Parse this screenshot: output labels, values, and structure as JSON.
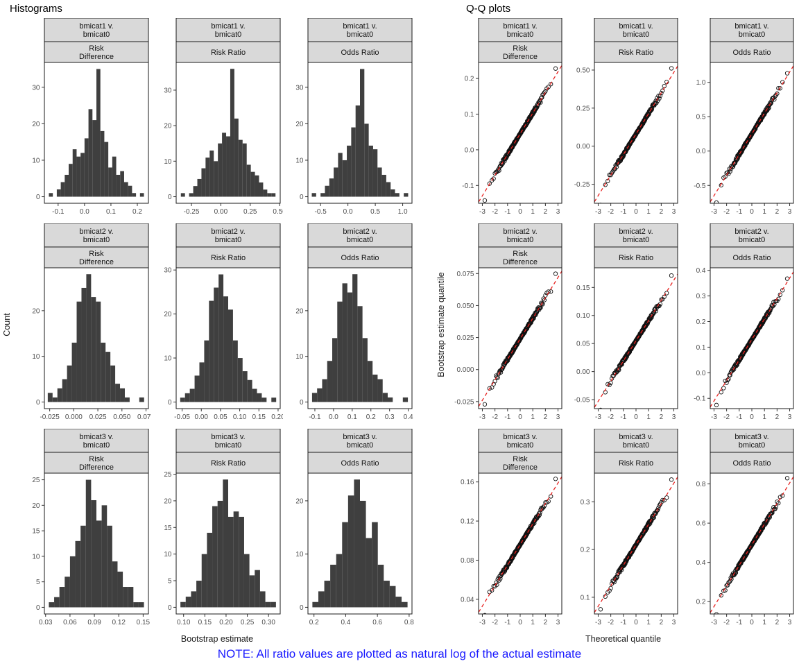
{
  "titles": {
    "left": "Histograms",
    "right": "Q-Q plots"
  },
  "axis_labels": {
    "hist_y": "Count",
    "hist_x": "Bootstrap estimate",
    "qq_y": "Bootstrap estimate quantile",
    "qq_x": "Theoretical quantile"
  },
  "note": {
    "text": "NOTE: All ratio values are plotted as natural log of the actual estimate",
    "color": "#1a1aff"
  },
  "style": {
    "bar_fill": "#3f3f3f",
    "strip_fill": "#d9d9d9",
    "panel_border": "#1a1a1a",
    "tick_color": "#333333",
    "tick_label_color": "#4d4d4d",
    "qq_line_color": "#e8201e",
    "point_stroke": "#111111"
  },
  "chart_data": [
    {
      "key": "h1",
      "type": "histogram",
      "strip1_lines": [
        "bmicat1 v.",
        "bmicat0"
      ],
      "strip2_lines": [
        "Risk",
        "Difference"
      ],
      "xmin": -0.135,
      "binwidth": 0.015,
      "counts": [
        1,
        0,
        2,
        4,
        6,
        9,
        13,
        11,
        12,
        16,
        24,
        21,
        35,
        18,
        15,
        8,
        11,
        6,
        7,
        4,
        3,
        1,
        0,
        1
      ],
      "xlim": [
        -0.152,
        0.242
      ],
      "ylim": [
        -1.8,
        36.8
      ],
      "xticks": [
        -0.1,
        0.0,
        0.1,
        0.2
      ],
      "xtick_labels": [
        "-0.1",
        "0.0",
        "0.1",
        "0.2"
      ],
      "yticks": [
        0,
        10,
        20,
        30
      ],
      "ytick_labels": [
        "0",
        "10",
        "20",
        "30"
      ]
    },
    {
      "key": "h2",
      "type": "histogram",
      "strip1_lines": [
        "bmicat1 v.",
        "bmicat0"
      ],
      "strip2_lines": [
        "Risk Ratio"
      ],
      "xmin": -0.34,
      "binwidth": 0.035,
      "counts": [
        1,
        0,
        1,
        3,
        5,
        8,
        11,
        13,
        10,
        15,
        18,
        17,
        36,
        22,
        16,
        15,
        9,
        7,
        6,
        4,
        2,
        1,
        1
      ],
      "xlim": [
        -0.38,
        0.505
      ],
      "ylim": [
        -1.85,
        37.8
      ],
      "xticks": [
        -0.25,
        0.0,
        0.25,
        0.5
      ],
      "xtick_labels": [
        "-0.25",
        "0.00",
        "0.25",
        "0.50"
      ],
      "yticks": [
        0,
        10,
        20,
        30
      ],
      "ytick_labels": [
        "0",
        "10",
        "20",
        "30"
      ]
    },
    {
      "key": "h3",
      "type": "histogram",
      "strip1_lines": [
        "bmicat1 v.",
        "bmicat0"
      ],
      "strip2_lines": [
        "Odds Ratio"
      ],
      "xmin": -0.66,
      "binwidth": 0.08,
      "counts": [
        1,
        0,
        1,
        3,
        5,
        8,
        12,
        10,
        14,
        19,
        25,
        35,
        20,
        14,
        13,
        8,
        6,
        4,
        2,
        1,
        0,
        1
      ],
      "xlim": [
        -0.73,
        1.17
      ],
      "ylim": [
        -1.8,
        36.8
      ],
      "xticks": [
        -0.5,
        0.0,
        0.5,
        1.0
      ],
      "xtick_labels": [
        "-0.5",
        "0.0",
        "0.5",
        "1.0"
      ],
      "yticks": [
        0,
        10,
        20,
        30
      ],
      "ytick_labels": [
        "0",
        "10",
        "20",
        "30"
      ]
    },
    {
      "key": "h4",
      "type": "histogram",
      "strip1_lines": [
        "bmicat2 v.",
        "bmicat0"
      ],
      "strip2_lines": [
        "Risk",
        "Difference"
      ],
      "xmin": -0.027,
      "binwidth": 0.005,
      "counts": [
        2,
        1,
        3,
        5,
        8,
        13,
        22,
        25,
        28,
        23,
        22,
        13,
        11,
        8,
        4,
        3,
        1,
        0,
        0,
        1
      ],
      "xlim": [
        -0.0305,
        0.0775
      ],
      "ylim": [
        -1.45,
        29.4
      ],
      "xticks": [
        -0.025,
        0.0,
        0.025,
        0.05,
        0.075
      ],
      "xtick_labels": [
        "-0.025",
        "0.000",
        "0.025",
        "0.050",
        "0.075"
      ],
      "yticks": [
        0,
        10,
        20
      ],
      "ytick_labels": [
        "0",
        "10",
        "20"
      ]
    },
    {
      "key": "h5",
      "type": "histogram",
      "strip1_lines": [
        "bmicat2 v.",
        "bmicat0"
      ],
      "strip2_lines": [
        "Risk Ratio"
      ],
      "xmin": -0.055,
      "binwidth": 0.0125,
      "counts": [
        1,
        2,
        3,
        6,
        9,
        14,
        23,
        26,
        29,
        24,
        21,
        14,
        10,
        7,
        5,
        3,
        2,
        1,
        0,
        1
      ],
      "xlim": [
        -0.0655,
        0.2055
      ],
      "ylim": [
        -1.5,
        30.5
      ],
      "xticks": [
        -0.05,
        0.0,
        0.05,
        0.1,
        0.15,
        0.2
      ],
      "xtick_labels": [
        "-0.05",
        "0.00",
        "0.05",
        "0.10",
        "0.15",
        "0.20"
      ],
      "yticks": [
        0,
        10,
        20,
        30
      ],
      "ytick_labels": [
        "0",
        "10",
        "20",
        "30"
      ]
    },
    {
      "key": "h6",
      "type": "histogram",
      "strip1_lines": [
        "bmicat2 v.",
        "bmicat0"
      ],
      "strip2_lines": [
        "Odds Ratio"
      ],
      "xmin": -0.115,
      "binwidth": 0.027,
      "counts": [
        2,
        3,
        5,
        9,
        14,
        22,
        26,
        24,
        28,
        21,
        14,
        9,
        6,
        5,
        2,
        1,
        0,
        0,
        1
      ],
      "xlim": [
        -0.137,
        0.42
      ],
      "ylim": [
        -1.45,
        29.4
      ],
      "xticks": [
        -0.1,
        0.0,
        0.1,
        0.2,
        0.3,
        0.4
      ],
      "xtick_labels": [
        "-0.1",
        "0.0",
        "0.1",
        "0.2",
        "0.3",
        "0.4"
      ],
      "yticks": [
        0,
        10,
        20
      ],
      "ytick_labels": [
        "0",
        "10",
        "20"
      ]
    },
    {
      "key": "h7",
      "type": "histogram",
      "strip1_lines": [
        "bmicat3 v.",
        "bmicat0"
      ],
      "strip2_lines": [
        "Risk",
        "Difference"
      ],
      "xmin": 0.034,
      "binwidth": 0.0065,
      "counts": [
        1,
        2,
        4,
        6,
        10,
        13,
        16,
        25,
        21,
        17,
        20,
        16,
        9,
        7,
        4,
        4,
        1,
        1
      ],
      "xlim": [
        0.0285,
        0.1565
      ],
      "ylim": [
        -1.3,
        26.3
      ],
      "xticks": [
        0.03,
        0.06,
        0.09,
        0.12,
        0.15
      ],
      "xtick_labels": [
        "0.03",
        "0.06",
        "0.09",
        "0.12",
        "0.15"
      ],
      "yticks": [
        0,
        5,
        10,
        15,
        20,
        25
      ],
      "ytick_labels": [
        "0",
        "5",
        "10",
        "15",
        "20",
        "25"
      ]
    },
    {
      "key": "h8",
      "type": "histogram",
      "strip1_lines": [
        "bmicat3 v.",
        "bmicat0"
      ],
      "strip2_lines": [
        "Risk Ratio"
      ],
      "xmin": 0.0925,
      "binwidth": 0.0125,
      "counts": [
        1,
        2,
        3,
        5,
        10,
        14,
        19,
        20,
        24,
        17,
        18,
        17,
        10,
        6,
        7,
        3,
        1,
        1
      ],
      "xlim": [
        0.0825,
        0.3275
      ],
      "ylim": [
        -1.25,
        25.2
      ],
      "xticks": [
        0.1,
        0.15,
        0.2,
        0.25,
        0.3
      ],
      "xtick_labels": [
        "0.10",
        "0.15",
        "0.20",
        "0.25",
        "0.30"
      ],
      "yticks": [
        0,
        5,
        10,
        15,
        20,
        25
      ],
      "ytick_labels": [
        "0",
        "5",
        "10",
        "15",
        "20",
        "25"
      ]
    },
    {
      "key": "h9",
      "type": "histogram",
      "strip1_lines": [
        "bmicat3 v.",
        "bmicat0"
      ],
      "strip2_lines": [
        "Odds Ratio"
      ],
      "xmin": 0.19,
      "binwidth": 0.0375,
      "counts": [
        1,
        3,
        5,
        8,
        10,
        16,
        21,
        24,
        20,
        13,
        16,
        8,
        5,
        4,
        2,
        1
      ],
      "xlim": [
        0.162,
        0.818
      ],
      "ylim": [
        -1.25,
        25.2
      ],
      "xticks": [
        0.2,
        0.4,
        0.6,
        0.8
      ],
      "xtick_labels": [
        "0.2",
        "0.4",
        "0.6",
        "0.8"
      ],
      "yticks": [
        0,
        10,
        20
      ],
      "ytick_labels": [
        "0",
        "10",
        "20"
      ]
    },
    {
      "key": "q1",
      "type": "qq",
      "seed": 1,
      "strip1_lines": [
        "bmicat1 v.",
        "bmicat0"
      ],
      "strip2_lines": [
        "Risk",
        "Difference"
      ],
      "n": 200,
      "mean": 0.045,
      "sd": 0.058,
      "xlim": [
        -3.3,
        3.3
      ],
      "ylim": [
        -0.15,
        0.245
      ],
      "xticks": [
        -3,
        -2,
        -1,
        0,
        1,
        2,
        3
      ],
      "xtick_labels": [
        "-3",
        "-2",
        "-1",
        "0",
        "1",
        "2",
        "3"
      ],
      "yticks": [
        -0.1,
        0.0,
        0.1,
        0.2
      ],
      "ytick_labels": [
        "-0.1",
        "0.0",
        "0.1",
        "0.2"
      ]
    },
    {
      "key": "q2",
      "type": "qq",
      "seed": 2,
      "strip1_lines": [
        "bmicat1 v.",
        "bmicat0"
      ],
      "strip2_lines": [
        "Risk Ratio"
      ],
      "n": 200,
      "mean": 0.08,
      "sd": 0.135,
      "xlim": [
        -3.3,
        3.3
      ],
      "ylim": [
        -0.375,
        0.55
      ],
      "xticks": [
        -3,
        -2,
        -1,
        0,
        1,
        2,
        3
      ],
      "xtick_labels": [
        "-3",
        "-2",
        "-1",
        "0",
        "1",
        "2",
        "3"
      ],
      "yticks": [
        -0.25,
        0.0,
        0.25,
        0.5
      ],
      "ytick_labels": [
        "-0.25",
        "0.00",
        "0.25",
        "0.50"
      ]
    },
    {
      "key": "q3",
      "type": "qq",
      "seed": 3,
      "strip1_lines": [
        "bmicat1 v.",
        "bmicat0"
      ],
      "strip2_lines": [
        "Odds Ratio"
      ],
      "n": 200,
      "mean": 0.25,
      "sd": 0.3,
      "xlim": [
        -3.3,
        3.3
      ],
      "ylim": [
        -0.76,
        1.29
      ],
      "xticks": [
        -3,
        -2,
        -1,
        0,
        1,
        2,
        3
      ],
      "xtick_labels": [
        "-3",
        "-2",
        "-1",
        "0",
        "1",
        "2",
        "3"
      ],
      "yticks": [
        -0.5,
        0.0,
        0.5,
        1.0
      ],
      "ytick_labels": [
        "-0.5",
        "0.0",
        "0.5",
        "1.0"
      ]
    },
    {
      "key": "q4",
      "type": "qq",
      "seed": 4,
      "strip1_lines": [
        "bmicat2 v.",
        "bmicat0"
      ],
      "strip2_lines": [
        "Risk",
        "Difference"
      ],
      "n": 200,
      "mean": 0.024,
      "sd": 0.016,
      "xlim": [
        -3.3,
        3.3
      ],
      "ylim": [
        -0.0305,
        0.0795
      ],
      "xticks": [
        -3,
        -2,
        -1,
        0,
        1,
        2,
        3
      ],
      "xtick_labels": [
        "-3",
        "-2",
        "-1",
        "0",
        "1",
        "2",
        "3"
      ],
      "yticks": [
        -0.025,
        0.0,
        0.025,
        0.05,
        0.075
      ],
      "ytick_labels": [
        "-0.025",
        "0.000",
        "0.025",
        "0.050",
        "0.075"
      ]
    },
    {
      "key": "q5",
      "type": "qq",
      "seed": 5,
      "strip1_lines": [
        "bmicat2 v.",
        "bmicat0"
      ],
      "strip2_lines": [
        "Risk Ratio"
      ],
      "n": 200,
      "mean": 0.055,
      "sd": 0.036,
      "xlim": [
        -3.3,
        3.3
      ],
      "ylim": [
        -0.066,
        0.185
      ],
      "xticks": [
        -3,
        -2,
        -1,
        0,
        1,
        2,
        3
      ],
      "xtick_labels": [
        "-3",
        "-2",
        "-1",
        "0",
        "1",
        "2",
        "3"
      ],
      "yticks": [
        -0.05,
        0.0,
        0.05,
        0.1,
        0.15
      ],
      "ytick_labels": [
        "-0.05",
        "0.00",
        "0.05",
        "0.10",
        "0.15"
      ]
    },
    {
      "key": "q6",
      "type": "qq",
      "seed": 6,
      "strip1_lines": [
        "bmicat2 v.",
        "bmicat0"
      ],
      "strip2_lines": [
        "Odds Ratio"
      ],
      "n": 200,
      "mean": 0.13,
      "sd": 0.08,
      "xlim": [
        -3.3,
        3.3
      ],
      "ylim": [
        -0.14,
        0.41
      ],
      "xticks": [
        -3,
        -2,
        -1,
        0,
        1,
        2,
        3
      ],
      "xtick_labels": [
        "-3",
        "-2",
        "-1",
        "0",
        "1",
        "2",
        "3"
      ],
      "yticks": [
        -0.1,
        0.0,
        0.1,
        0.2,
        0.3,
        0.4
      ],
      "ytick_labels": [
        "-0.1",
        "0.0",
        "0.1",
        "0.2",
        "0.3",
        "0.4"
      ]
    },
    {
      "key": "q7",
      "type": "qq",
      "seed": 7,
      "strip1_lines": [
        "bmicat3 v.",
        "bmicat0"
      ],
      "strip2_lines": [
        "Risk",
        "Difference"
      ],
      "n": 200,
      "mean": 0.096,
      "sd": 0.021,
      "xlim": [
        -3.3,
        3.3
      ],
      "ylim": [
        0.025,
        0.169
      ],
      "xticks": [
        -3,
        -2,
        -1,
        0,
        1,
        2,
        3
      ],
      "xtick_labels": [
        "-3",
        "-2",
        "-1",
        "0",
        "1",
        "2",
        "3"
      ],
      "yticks": [
        0.04,
        0.08,
        0.12,
        0.16
      ],
      "ytick_labels": [
        "0.04",
        "0.08",
        "0.12",
        "0.16"
      ]
    },
    {
      "key": "q8",
      "type": "qq",
      "seed": 8,
      "strip1_lines": [
        "bmicat3 v.",
        "bmicat0"
      ],
      "strip2_lines": [
        "Risk Ratio"
      ],
      "n": 200,
      "mean": 0.21,
      "sd": 0.043,
      "xlim": [
        -3.3,
        3.3
      ],
      "ylim": [
        0.065,
        0.36
      ],
      "xticks": [
        -3,
        -2,
        -1,
        0,
        1,
        2,
        3
      ],
      "xtick_labels": [
        "-3",
        "-2",
        "-1",
        "0",
        "1",
        "2",
        "3"
      ],
      "yticks": [
        0.1,
        0.2,
        0.3
      ],
      "ytick_labels": [
        "0.1",
        "0.2",
        "0.3"
      ]
    },
    {
      "key": "q9",
      "type": "qq",
      "seed": 9,
      "strip1_lines": [
        "bmicat3 v.",
        "bmicat0"
      ],
      "strip2_lines": [
        "Odds Ratio"
      ],
      "n": 200,
      "mean": 0.49,
      "sd": 0.105,
      "xlim": [
        -3.3,
        3.3
      ],
      "ylim": [
        0.137,
        0.855
      ],
      "xticks": [
        -3,
        -2,
        -1,
        0,
        1,
        2,
        3
      ],
      "xtick_labels": [
        "-3",
        "-2",
        "-1",
        "0",
        "1",
        "2",
        "3"
      ],
      "yticks": [
        0.2,
        0.4,
        0.6,
        0.8
      ],
      "ytick_labels": [
        "0.2",
        "0.4",
        "0.6",
        "0.8"
      ]
    }
  ]
}
